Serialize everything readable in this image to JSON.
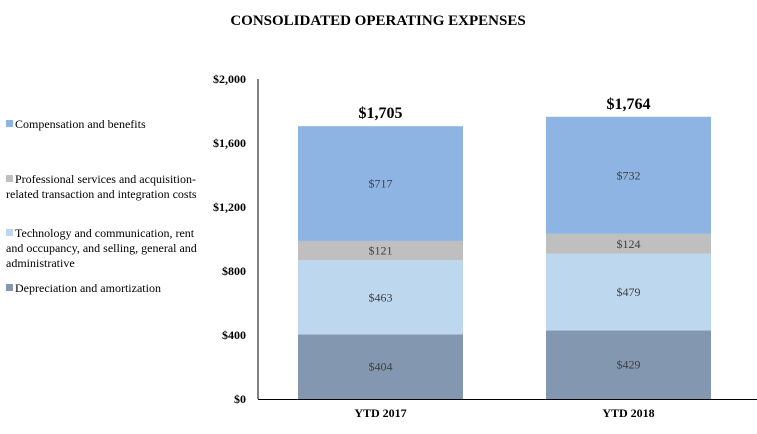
{
  "chart_data": {
    "type": "bar",
    "stacked": true,
    "title": "CONSOLIDATED OPERATING EXPENSES",
    "xlabel": "",
    "ylabel": "",
    "categories": [
      "YTD 2017",
      "YTD 2018"
    ],
    "ylim": [
      0,
      2000
    ],
    "yticks": [
      0,
      400,
      800,
      1200,
      1600,
      2000
    ],
    "ytick_labels": [
      "$0",
      "$400",
      "$800",
      "$1,200",
      "$1,600",
      "$2,000"
    ],
    "grid": false,
    "legend_placement": "left",
    "series": [
      {
        "name": "Depreciation and amortization",
        "values": [
          404,
          429
        ],
        "labels": [
          "$404",
          "$429"
        ],
        "color": "#8497b0"
      },
      {
        "name": "Technology and communication, rent and occupancy, and selling, general and administrative",
        "values": [
          463,
          479
        ],
        "labels": [
          "$463",
          "$479"
        ],
        "color": "#bdd7ee"
      },
      {
        "name": "Professional services and acquisition-related transaction and integration costs",
        "values": [
          121,
          124
        ],
        "labels": [
          "$121",
          "$124"
        ],
        "color": "#bfbfbf"
      },
      {
        "name": "Compensation and benefits",
        "values": [
          717,
          732
        ],
        "labels": [
          "$717",
          "$732"
        ],
        "color": "#8db4e2"
      }
    ],
    "totals": [
      1705,
      1764
    ],
    "total_labels": [
      "$1,705",
      "$1,764"
    ]
  }
}
